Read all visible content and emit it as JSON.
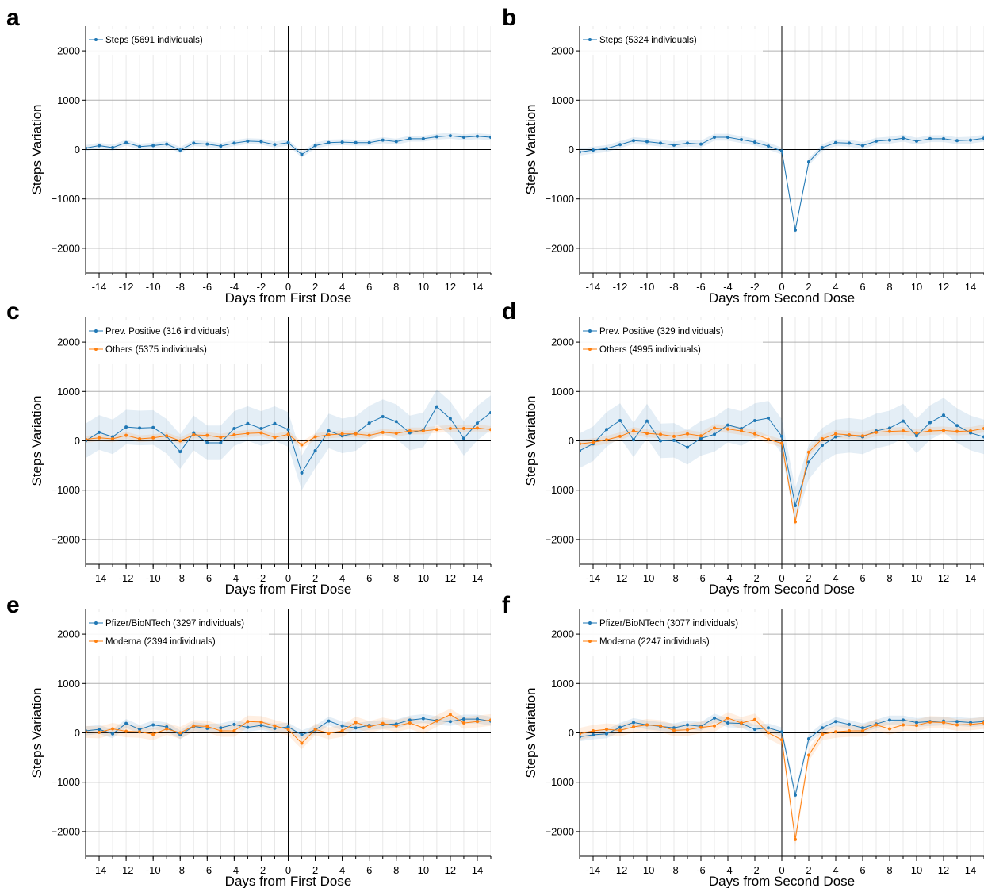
{
  "colors": {
    "blue": "#1f77b4",
    "orange": "#ff7f0e",
    "grid_major": "#b0b0b0",
    "grid_minor": "#e8e8e8",
    "zero_line": "#000000"
  },
  "chart_data": [
    {
      "panel": "a",
      "type": "line",
      "xlabel": "Days from First Dose",
      "ylabel": "Steps Variation",
      "xlim": [
        -15,
        15
      ],
      "ylim": [
        -2500,
        2500
      ],
      "x_ticks": [
        -14,
        -12,
        -10,
        -8,
        -6,
        -4,
        -2,
        0,
        2,
        4,
        6,
        8,
        10,
        12,
        14
      ],
      "x_tick_labels": [
        "-14",
        "-12",
        "-10",
        "-8",
        "-6",
        "-4",
        "-2",
        "0",
        "2",
        "4",
        "6",
        "8",
        "10",
        "12",
        "14"
      ],
      "y_ticks": [
        -2000,
        -1000,
        0,
        1000,
        2000
      ],
      "y_tick_labels": [
        "−2000",
        "−1000",
        "0",
        "1000",
        "2000"
      ],
      "legend_position": "top-left",
      "x": [
        -15,
        -14,
        -13,
        -12,
        -11,
        -10,
        -9,
        -8,
        -7,
        -6,
        -5,
        -4,
        -3,
        -2,
        -1,
        0,
        1,
        2,
        3,
        4,
        5,
        6,
        7,
        8,
        9,
        10,
        11,
        12,
        13,
        14,
        15
      ],
      "series": [
        {
          "name": "Steps (5691 individuals)",
          "color": "blue",
          "values": [
            30,
            80,
            40,
            140,
            60,
            80,
            110,
            -10,
            130,
            110,
            70,
            130,
            170,
            160,
            100,
            140,
            -100,
            80,
            140,
            150,
            140,
            140,
            190,
            160,
            220,
            220,
            260,
            280,
            250,
            270,
            250
          ],
          "band": 60
        }
      ]
    },
    {
      "panel": "b",
      "type": "line",
      "xlabel": "Days from Second Dose",
      "ylabel": "Steps Variation",
      "xlim": [
        -15,
        15
      ],
      "ylim": [
        -2500,
        2500
      ],
      "x_ticks": [
        -14,
        -12,
        -10,
        -8,
        -6,
        -4,
        -2,
        0,
        2,
        4,
        6,
        8,
        10,
        12,
        14
      ],
      "x_tick_labels": [
        "-14",
        "-12",
        "-10",
        "-8",
        "-6",
        "-4",
        "-2",
        "0",
        "2",
        "4",
        "6",
        "8",
        "10",
        "12",
        "14"
      ],
      "y_ticks": [
        -2000,
        -1000,
        0,
        1000,
        2000
      ],
      "y_tick_labels": [
        "−2000",
        "−1000",
        "0",
        "1000",
        "2000"
      ],
      "legend_position": "top-left",
      "x": [
        -15,
        -14,
        -13,
        -12,
        -11,
        -10,
        -9,
        -8,
        -7,
        -6,
        -5,
        -4,
        -3,
        -2,
        -1,
        0,
        1,
        2,
        3,
        4,
        5,
        6,
        7,
        8,
        9,
        10,
        11,
        12,
        13,
        14,
        15
      ],
      "series": [
        {
          "name": "Steps (5324 individuals)",
          "color": "blue",
          "values": [
            -50,
            -10,
            20,
            100,
            180,
            160,
            130,
            90,
            130,
            110,
            250,
            250,
            200,
            150,
            70,
            -30,
            -1630,
            -250,
            40,
            140,
            130,
            80,
            170,
            190,
            230,
            170,
            220,
            220,
            180,
            190,
            230
          ],
          "band": 70
        }
      ]
    },
    {
      "panel": "c",
      "type": "line",
      "xlabel": "Days from First Dose",
      "ylabel": "Steps Variation",
      "xlim": [
        -15,
        15
      ],
      "ylim": [
        -2500,
        2500
      ],
      "x_ticks": [
        -14,
        -12,
        -10,
        -8,
        -6,
        -4,
        -2,
        0,
        2,
        4,
        6,
        8,
        10,
        12,
        14
      ],
      "x_tick_labels": [
        "-14",
        "-12",
        "-10",
        "-8",
        "-6",
        "-4",
        "-2",
        "0",
        "2",
        "4",
        "6",
        "8",
        "10",
        "12",
        "14"
      ],
      "y_ticks": [
        -2000,
        -1000,
        0,
        1000,
        2000
      ],
      "y_tick_labels": [
        "−2000",
        "−1000",
        "0",
        "1000",
        "2000"
      ],
      "legend_position": "top-left",
      "x": [
        -15,
        -14,
        -13,
        -12,
        -11,
        -10,
        -9,
        -8,
        -7,
        -6,
        -5,
        -4,
        -3,
        -2,
        -1,
        0,
        1,
        2,
        3,
        4,
        5,
        6,
        7,
        8,
        9,
        10,
        11,
        12,
        13,
        14,
        15
      ],
      "series": [
        {
          "name": "Prev. Positive (316 individuals)",
          "color": "blue",
          "values": [
            0,
            170,
            80,
            280,
            260,
            270,
            90,
            -220,
            160,
            -40,
            -40,
            250,
            350,
            250,
            350,
            230,
            -650,
            -200,
            200,
            100,
            150,
            360,
            490,
            390,
            160,
            220,
            690,
            450,
            50,
            360,
            570
          ],
          "band": 350
        },
        {
          "name": "Others (5375 individuals)",
          "color": "orange",
          "values": [
            30,
            60,
            40,
            110,
            40,
            60,
            100,
            0,
            120,
            110,
            70,
            120,
            150,
            160,
            70,
            130,
            -80,
            80,
            120,
            140,
            140,
            110,
            170,
            150,
            200,
            200,
            230,
            250,
            250,
            260,
            230
          ],
          "band": 70
        }
      ]
    },
    {
      "panel": "d",
      "type": "line",
      "xlabel": "Days from Second Dose",
      "ylabel": "Steps Variation",
      "xlim": [
        -15,
        15
      ],
      "ylim": [
        -2500,
        2500
      ],
      "x_ticks": [
        -14,
        -12,
        -10,
        -8,
        -6,
        -4,
        -2,
        0,
        2,
        4,
        6,
        8,
        10,
        12,
        14
      ],
      "x_tick_labels": [
        "-14",
        "-12",
        "-10",
        "-8",
        "-6",
        "-4",
        "-2",
        "0",
        "2",
        "4",
        "6",
        "8",
        "10",
        "12",
        "14"
      ],
      "y_ticks": [
        -2000,
        -1000,
        0,
        1000,
        2000
      ],
      "y_tick_labels": [
        "−2000",
        "−1000",
        "0",
        "1000",
        "2000"
      ],
      "legend_position": "top-left",
      "x": [
        -15,
        -14,
        -13,
        -12,
        -11,
        -10,
        -9,
        -8,
        -7,
        -6,
        -5,
        -4,
        -3,
        -2,
        -1,
        0,
        1,
        2,
        3,
        4,
        5,
        6,
        7,
        8,
        9,
        10,
        11,
        12,
        13,
        14,
        15
      ],
      "series": [
        {
          "name": "Prev. Positive (329 individuals)",
          "color": "blue",
          "values": [
            -200,
            -60,
            230,
            410,
            20,
            400,
            0,
            10,
            -130,
            50,
            130,
            320,
            250,
            410,
            460,
            90,
            -1310,
            -430,
            -90,
            80,
            110,
            80,
            200,
            260,
            400,
            100,
            370,
            520,
            310,
            160,
            80
          ],
          "band": 350
        },
        {
          "name": "Others (4995 individuals)",
          "color": "orange",
          "values": [
            -60,
            -30,
            20,
            90,
            200,
            150,
            130,
            90,
            140,
            100,
            260,
            240,
            200,
            140,
            30,
            -50,
            -1640,
            -230,
            40,
            140,
            120,
            100,
            170,
            190,
            200,
            160,
            200,
            210,
            190,
            200,
            250
          ],
          "band": 80
        }
      ]
    },
    {
      "panel": "e",
      "type": "line",
      "xlabel": "Days from First Dose",
      "ylabel": "Steps Variation",
      "xlim": [
        -15,
        15
      ],
      "ylim": [
        -2500,
        2500
      ],
      "x_ticks": [
        -14,
        -12,
        -10,
        -8,
        -6,
        -4,
        -2,
        0,
        2,
        4,
        6,
        8,
        10,
        12,
        14
      ],
      "x_tick_labels": [
        "-14",
        "-12",
        "-10",
        "-8",
        "-6",
        "-4",
        "-2",
        "0",
        "2",
        "4",
        "6",
        "8",
        "10",
        "12",
        "14"
      ],
      "y_ticks": [
        -2000,
        -1000,
        0,
        1000,
        2000
      ],
      "y_tick_labels": [
        "−2000",
        "−1000",
        "0",
        "1000",
        "2000"
      ],
      "legend_position": "top-left",
      "x": [
        -15,
        -14,
        -13,
        -12,
        -11,
        -10,
        -9,
        -8,
        -7,
        -6,
        -5,
        -4,
        -3,
        -2,
        -1,
        0,
        1,
        2,
        3,
        4,
        5,
        6,
        7,
        8,
        9,
        10,
        11,
        12,
        13,
        14,
        15
      ],
      "series": [
        {
          "name": "Pfizer/BioNTech (3297 individuals)",
          "color": "blue",
          "values": [
            40,
            70,
            -20,
            190,
            70,
            160,
            120,
            -40,
            130,
            90,
            100,
            170,
            110,
            150,
            90,
            120,
            -40,
            60,
            240,
            140,
            100,
            150,
            170,
            180,
            260,
            290,
            250,
            230,
            280,
            280,
            240
          ],
          "band": 90
        },
        {
          "name": "Moderna (2394 individuals)",
          "color": "orange",
          "values": [
            20,
            10,
            80,
            30,
            20,
            -30,
            80,
            0,
            140,
            130,
            40,
            40,
            230,
            220,
            140,
            70,
            -210,
            70,
            -10,
            40,
            210,
            120,
            190,
            140,
            200,
            100,
            240,
            370,
            200,
            230,
            260
          ],
          "band": 120
        }
      ]
    },
    {
      "panel": "f",
      "type": "line",
      "xlabel": "Days from Second Dose",
      "ylabel": "Steps Variation",
      "xlim": [
        -15,
        15
      ],
      "ylim": [
        -2500,
        2500
      ],
      "x_ticks": [
        -14,
        -12,
        -10,
        -8,
        -6,
        -4,
        -2,
        0,
        2,
        4,
        6,
        8,
        10,
        12,
        14
      ],
      "x_tick_labels": [
        "-14",
        "-12",
        "-10",
        "-8",
        "-6",
        "-4",
        "-2",
        "0",
        "2",
        "4",
        "6",
        "8",
        "10",
        "12",
        "14"
      ],
      "y_ticks": [
        -2000,
        -1000,
        0,
        1000,
        2000
      ],
      "y_tick_labels": [
        "−2000",
        "−1000",
        "0",
        "1000",
        "2000"
      ],
      "legend_position": "top-left",
      "x": [
        -15,
        -14,
        -13,
        -12,
        -11,
        -10,
        -9,
        -8,
        -7,
        -6,
        -5,
        -4,
        -3,
        -2,
        -1,
        0,
        1,
        2,
        3,
        4,
        5,
        6,
        7,
        8,
        9,
        10,
        11,
        12,
        13,
        14,
        15
      ],
      "series": [
        {
          "name": "Pfizer/BioNTech (3077 individuals)",
          "color": "blue",
          "values": [
            -80,
            -40,
            -20,
            110,
            210,
            160,
            130,
            100,
            160,
            130,
            300,
            200,
            190,
            70,
            100,
            20,
            -1260,
            -120,
            100,
            230,
            170,
            100,
            180,
            260,
            260,
            210,
            230,
            240,
            230,
            210,
            230
          ],
          "band": 90
        },
        {
          "name": "Moderna (2247 individuals)",
          "color": "orange",
          "values": [
            -20,
            40,
            70,
            50,
            120,
            160,
            140,
            50,
            60,
            110,
            140,
            300,
            200,
            270,
            0,
            -140,
            -2160,
            -450,
            -30,
            20,
            40,
            40,
            160,
            80,
            160,
            150,
            220,
            210,
            160,
            170,
            200
          ],
          "band": 120
        }
      ]
    }
  ]
}
